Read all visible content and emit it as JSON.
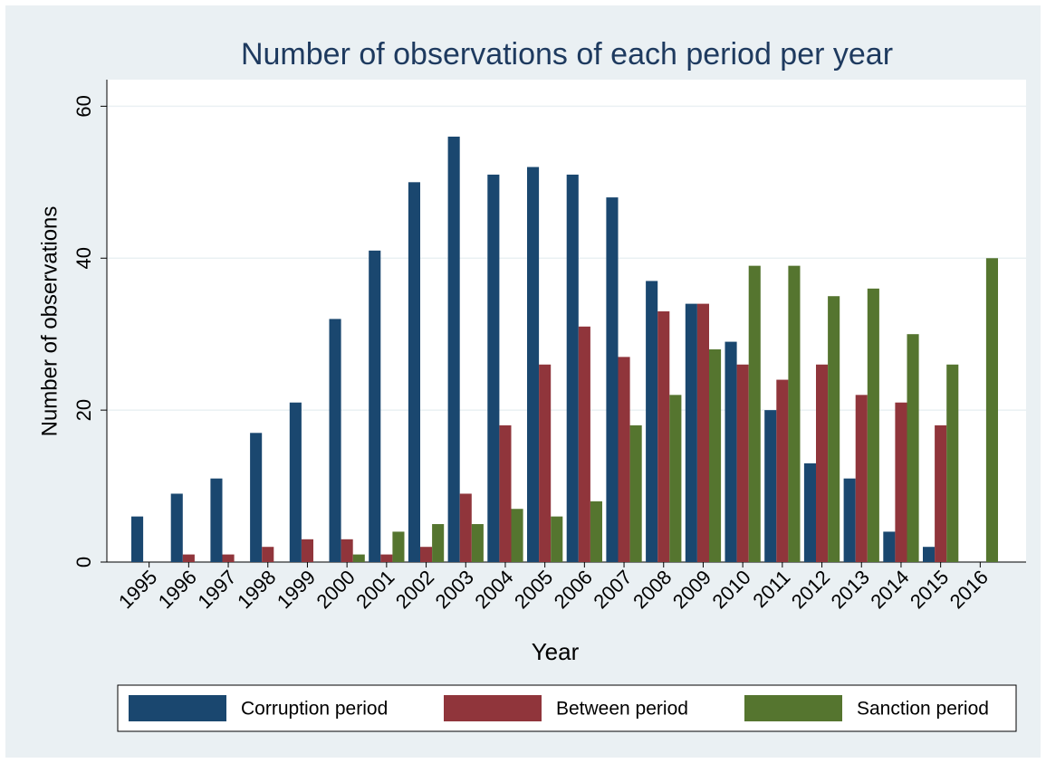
{
  "chart_data": {
    "type": "bar",
    "title": "Number of observations of each period per year",
    "x_label": "Year",
    "y_label": "Number of observations",
    "categories": [
      "1995",
      "1996",
      "1997",
      "1998",
      "1999",
      "2000",
      "2001",
      "2002",
      "2003",
      "2004",
      "2005",
      "2006",
      "2007",
      "2008",
      "2009",
      "2010",
      "2011",
      "2012",
      "2013",
      "2014",
      "2015",
      "2016"
    ],
    "series": [
      {
        "name": "Corruption period",
        "color": "#1a476f",
        "values": [
          6,
          9,
          11,
          17,
          21,
          32,
          41,
          50,
          56,
          51,
          52,
          51,
          48,
          37,
          34,
          29,
          20,
          13,
          11,
          4,
          2,
          0
        ]
      },
      {
        "name": "Between period",
        "color": "#90353b",
        "values": [
          0,
          1,
          1,
          2,
          3,
          3,
          1,
          2,
          9,
          18,
          26,
          31,
          27,
          33,
          34,
          26,
          24,
          26,
          22,
          21,
          18,
          0
        ]
      },
      {
        "name": "Sanction period",
        "color": "#55752f",
        "values": [
          0,
          0,
          0,
          0,
          0,
          1,
          4,
          5,
          5,
          7,
          6,
          8,
          18,
          22,
          28,
          39,
          39,
          35,
          36,
          30,
          26,
          40
        ]
      }
    ],
    "ylim": [
      0,
      63.5
    ],
    "yticks": [
      0,
      20,
      40,
      60
    ],
    "grid": true,
    "legend": "bottom"
  }
}
